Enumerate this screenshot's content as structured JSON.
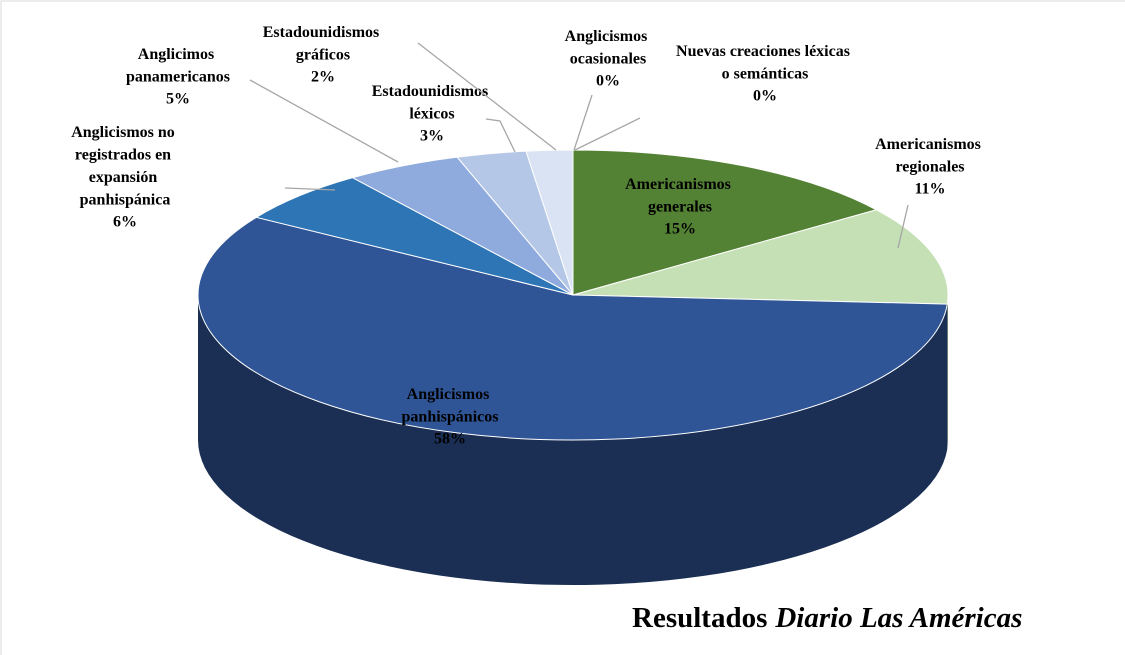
{
  "chart_data": {
    "type": "pie",
    "title": {
      "text": "Resultados",
      "emphasis": "Diario Las Américas"
    },
    "categories": [
      "Americanismos generales",
      "Americanismos regionales",
      "Anglicismos panhispánicos",
      "Anglicismos no registrados en expansión panhispánica",
      "Anglicimos panamericanos",
      "Estadounidismos léxicos",
      "Estadounidismos gráficos",
      "Anglicismos ocasionales",
      "Nuevas creaciones léxicas o semánticas"
    ],
    "values": [
      15,
      11,
      58,
      6,
      5,
      3,
      2,
      0,
      0
    ],
    "value_labels": [
      "15%",
      "11%",
      "58%",
      "6%",
      "5%",
      "3%",
      "2%",
      "0%",
      "0%"
    ],
    "colors": [
      "#548235",
      "#c5e0b4",
      "#2f5597",
      "#2e75b6",
      "#8faadc",
      "#b4c7e7",
      "#dae3f3",
      "#a9d18e",
      "#e2f0d9"
    ]
  }
}
